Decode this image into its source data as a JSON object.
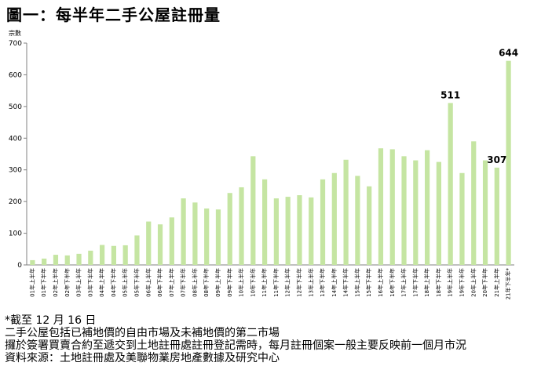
{
  "title": "圖一：每半年二手公屋註冊量",
  "chart_data": {
    "type": "bar",
    "ylabel": "宗數",
    "ylim": [
      0,
      700
    ],
    "yticks": [
      0,
      100,
      200,
      300,
      400,
      500,
      600,
      700
    ],
    "bar_color": "#c5e5a2",
    "grid": false,
    "categories": [
      "01年上半年",
      "01年下半年",
      "02年上半年",
      "02年下半年",
      "03年上半年",
      "03年下半年",
      "04年上半年",
      "04年下半年",
      "05年上半年",
      "05年下半年",
      "06年上半年",
      "06年下半年",
      "07年上半年",
      "07年下半年",
      "08年上半年",
      "08年下半年",
      "09年上半年",
      "09年下半年",
      "10年上半年",
      "10年下半年",
      "11年上半年",
      "11年下半年",
      "12年上半年",
      "12年下半年",
      "13年上半年",
      "13年下半年",
      "14年上半年",
      "14年下半年",
      "15年上半年",
      "15年下半年",
      "16年上半年",
      "16年下半年",
      "17年上半年",
      "17年下半年",
      "18年上半年",
      "18年下半年",
      "19年上半年",
      "19年下半年",
      "20年上半年",
      "20年下半年",
      "21年上半年",
      "21年下半年*"
    ],
    "values": [
      15,
      20,
      32,
      30,
      35,
      45,
      63,
      60,
      62,
      93,
      137,
      128,
      150,
      210,
      197,
      178,
      175,
      227,
      245,
      343,
      270,
      210,
      215,
      220,
      213,
      270,
      290,
      332,
      281,
      248,
      368,
      365,
      343,
      330,
      362,
      325,
      511,
      290,
      390,
      330,
      307,
      644
    ],
    "data_labels": [
      {
        "index": 36,
        "text": "511"
      },
      {
        "index": 40,
        "text": "307"
      },
      {
        "index": 41,
        "text": "644"
      }
    ]
  },
  "notes": [
    "*截至 12 月 16 日",
    "二手公屋包括已補地價的自由市場及未補地價的第二市場",
    "攞於簽署買賣合約至遞交到土地註冊處註冊登記需時，每月註冊個案一般主要反映前一個月市況",
    "資料來源：土地註冊處及美聯物業房地產數據及研究中心"
  ]
}
